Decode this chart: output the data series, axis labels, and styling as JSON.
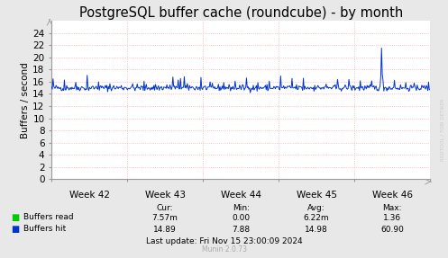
{
  "title": "PostgreSQL buffer cache (roundcube) - by month",
  "ylabel": "Buffers / second",
  "background_color": "#e8e8e8",
  "plot_bg_color": "#ffffff",
  "grid_color": "#ffaaaa",
  "ylim": [
    0,
    26
  ],
  "yticks": [
    0,
    2,
    4,
    6,
    8,
    10,
    12,
    14,
    16,
    18,
    20,
    22,
    24
  ],
  "xtick_labels": [
    "Week 42",
    "Week 43",
    "Week 44",
    "Week 45",
    "Week 46"
  ],
  "title_fontsize": 10.5,
  "axis_fontsize": 7.5,
  "tick_fontsize": 7.5,
  "line_color_read": "#00cc00",
  "line_color_hit": "#0033cc",
  "legend_read_color": "#00cc00",
  "legend_hit_color": "#0033cc",
  "watermark": "RRDTOOL / TOBI OETIKER",
  "munin_text": "Munin 2.0.73",
  "last_update": "Last update: Fri Nov 15 23:00:09 2024",
  "cur_label": "Cur:",
  "min_label": "Min:",
  "avg_label": "Avg:",
  "max_label": "Max:",
  "read_cur": "7.57m",
  "read_min": "0.00",
  "read_avg": "6.22m",
  "read_max": "1.36",
  "hit_cur": "14.89",
  "hit_min": "7.88",
  "hit_avg": "14.98",
  "hit_max": "60.90",
  "label_read": "Buffers read",
  "label_hit": "Buffers hit",
  "n_points": 500
}
